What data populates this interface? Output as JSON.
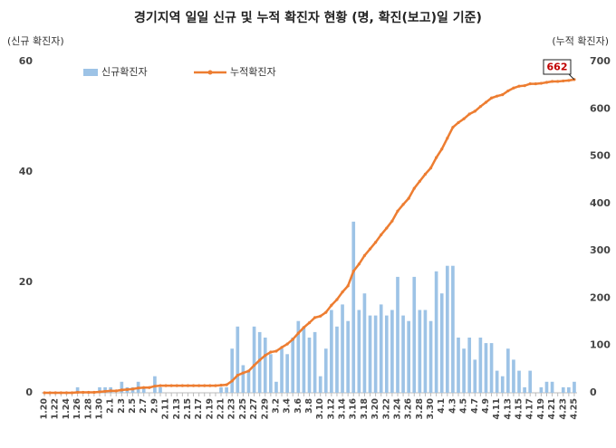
{
  "chart_data": {
    "type": "bar_line",
    "title": "경기지역 일일 신규 및 누적 확진자 현황 (명, 확진(보고)일 기준)",
    "y_label": "(신규 확진자)",
    "y2_label": "(누적 확진자)",
    "categories": [
      "1.20",
      null,
      "1.22",
      null,
      "1.24",
      null,
      "1.26",
      null,
      "1.28",
      null,
      "1.30",
      null,
      "2.1",
      null,
      "2.3",
      null,
      "2.5",
      null,
      "2.7",
      null,
      "2.9",
      null,
      "2.11",
      null,
      "2.13",
      null,
      "2.15",
      null,
      "2.17",
      null,
      "2.19",
      null,
      "2.21",
      null,
      "2.23",
      null,
      "2.25",
      null,
      "2.27",
      null,
      "2.29",
      null,
      "3.2",
      null,
      "3.4",
      null,
      "3.6",
      null,
      "3.8",
      null,
      "3.10",
      null,
      "3.12",
      null,
      "3.14",
      null,
      "3.16",
      null,
      "3.18",
      null,
      "3.20",
      null,
      "3.22",
      null,
      "3.24",
      null,
      "3.26",
      null,
      "3.28",
      null,
      "3.30",
      null,
      "4.1",
      null,
      "4.3",
      null,
      "4.5",
      null,
      "4.7",
      null,
      "4.9",
      null,
      "4.11",
      null,
      "4.13",
      null,
      "4.15",
      null,
      "4.17",
      null,
      "4.19",
      null,
      "4.21",
      null,
      "4.23",
      null,
      "4.25"
    ],
    "series": [
      {
        "name": "신규확진자",
        "type": "bar",
        "color": "#9dc3e6",
        "values": [
          0,
          0,
          0,
          0,
          0,
          0,
          1,
          0,
          0,
          0,
          1,
          1,
          1,
          0,
          2,
          1,
          1,
          2,
          1,
          0,
          3,
          1,
          0,
          0,
          0,
          0,
          0,
          0,
          0,
          0,
          0,
          0,
          1,
          1,
          8,
          12,
          5,
          4,
          12,
          11,
          10,
          7,
          2,
          8,
          7,
          10,
          13,
          12,
          10,
          11,
          3,
          8,
          15,
          12,
          16,
          13,
          31,
          15,
          18,
          14,
          14,
          16,
          14,
          15,
          21,
          14,
          13,
          21,
          15,
          15,
          13,
          22,
          18,
          23,
          23,
          10,
          8,
          10,
          6,
          10,
          9,
          9,
          4,
          3,
          8,
          6,
          4,
          1,
          4,
          0,
          1,
          2,
          2,
          0,
          1,
          1,
          2
        ]
      },
      {
        "name": "누적확진자",
        "type": "line",
        "axis": "y2",
        "color": "#ed7d31",
        "values": [
          0,
          0,
          0,
          0,
          0,
          0,
          1,
          1,
          1,
          1,
          2,
          3,
          4,
          4,
          6,
          7,
          8,
          10,
          11,
          11,
          14,
          15,
          15,
          15,
          15,
          15,
          15,
          15,
          15,
          15,
          15,
          15,
          16,
          17,
          25,
          37,
          42,
          46,
          58,
          69,
          79,
          86,
          88,
          96,
          103,
          113,
          126,
          138,
          148,
          159,
          162,
          170,
          185,
          197,
          213,
          226,
          257,
          272,
          290,
          304,
          318,
          334,
          348,
          363,
          384,
          398,
          411,
          432,
          447,
          462,
          475,
          497,
          515,
          538,
          561,
          571,
          579,
          589,
          595,
          605,
          614,
          623,
          627,
          630,
          638,
          644,
          648,
          649,
          653,
          653,
          654,
          656,
          658,
          658,
          659,
          660,
          662
        ]
      }
    ],
    "ylim": [
      0,
      60
    ],
    "yticks": [
      0,
      20,
      40,
      60
    ],
    "y2lim": [
      0,
      700
    ],
    "y2ticks": [
      0,
      100,
      200,
      300,
      400,
      500,
      600,
      700
    ],
    "legend": "top-left"
  }
}
